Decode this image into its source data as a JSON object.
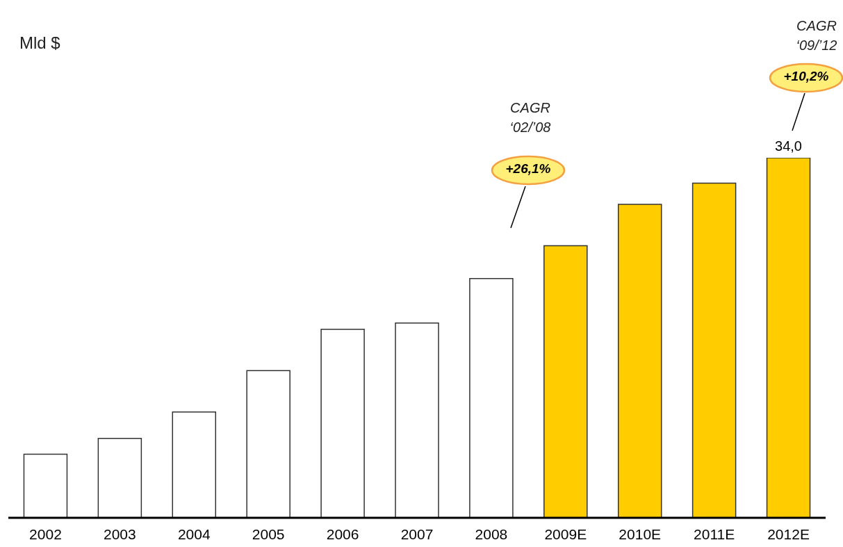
{
  "chart_data": {
    "type": "bar",
    "categories": [
      "2002",
      "2003",
      "2004",
      "2005",
      "2006",
      "2007",
      "2008",
      "2009E",
      "2010E",
      "2011E",
      "2012E"
    ],
    "values": [
      6.0,
      7.5,
      10.0,
      13.9,
      17.8,
      18.4,
      22.6,
      25.7,
      29.6,
      31.6,
      34.0
    ],
    "colors": [
      "#ffffff",
      "#ffffff",
      "#ffffff",
      "#ffffff",
      "#ffffff",
      "#ffffff",
      "#ffffff",
      "#ffcc00",
      "#ffcc00",
      "#ffcc00",
      "#ffcc00"
    ],
    "value_labels": [
      null,
      null,
      null,
      null,
      null,
      null,
      null,
      null,
      null,
      null,
      "34,0"
    ],
    "annotations": [
      "Mld $",
      "CAGR",
      "‘02/’08",
      "+26,1%",
      "CAGR",
      "‘09/’12",
      "+10,2%"
    ],
    "grid": false,
    "legend": false
  }
}
